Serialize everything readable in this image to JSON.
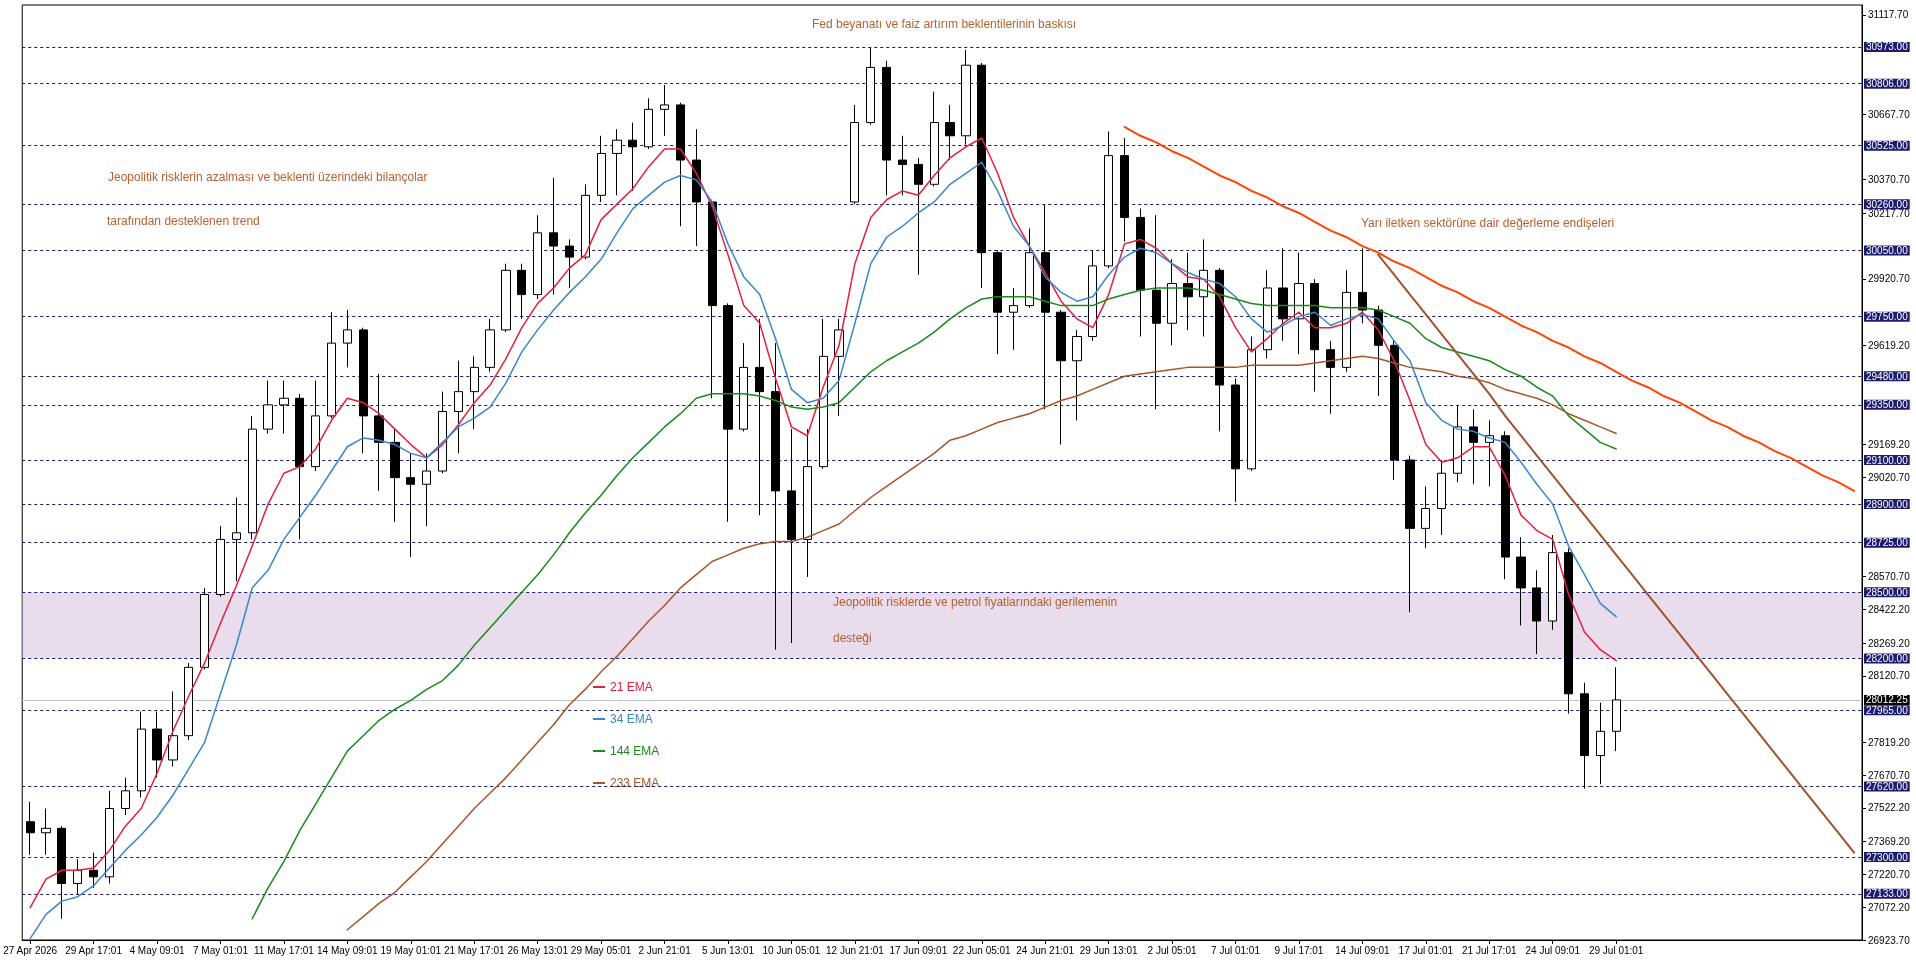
{
  "chart_data": {
    "type": "candlestick",
    "color": "#000000",
    "categories": [
      "27 Apr 2026",
      null,
      null,
      null,
      "29 Apr 17:01",
      null,
      null,
      null,
      "4 May 09:01",
      null,
      null,
      null,
      "7 May 01:01",
      null,
      null,
      null,
      "11 May 17:01",
      null,
      null,
      null,
      "14 May 09:01",
      null,
      null,
      null,
      "19 May 01:01",
      null,
      null,
      null,
      "21 May 17:01",
      null,
      null,
      null,
      "26 May 13:01",
      null,
      null,
      null,
      "29 May 05:01",
      null,
      null,
      null,
      "2 Jun 21:01",
      null,
      null,
      null,
      "5 Jun 13:01",
      null,
      null,
      null,
      "10 Jun 05:01",
      null,
      null,
      null,
      "12 Jun 21:01",
      null,
      null,
      null,
      "17 Jun 09:01",
      null,
      null,
      null,
      "22 Jun 05:01",
      null,
      null,
      null,
      "24 Jun 21:01",
      null,
      null,
      null,
      "29 Jun 13:01",
      null,
      null,
      null,
      "2 Jul 05:01",
      null,
      null,
      null,
      "7 Jul 01:01",
      null,
      null,
      null,
      "9 Jul 17:01",
      null,
      null,
      null,
      "14 Jul 09:01",
      null,
      null,
      null,
      "17 Jul 01:01",
      null,
      null,
      null,
      "21 Jul 17:01",
      null,
      null,
      null,
      "24 Jul 09:01",
      null,
      null,
      null,
      "29 Jul 01:01",
      null,
      null,
      null,
      null,
      null,
      null,
      null,
      null,
      null,
      null,
      null,
      null,
      null,
      null,
      null
    ],
    "ohlc": [
      [
        27460,
        27550,
        27310,
        27410
      ],
      [
        27410,
        27520,
        27310,
        27430
      ],
      [
        27430,
        27440,
        27020,
        27180
      ],
      [
        27180,
        27290,
        27130,
        27240
      ],
      [
        27240,
        27320,
        27160,
        27210
      ],
      [
        27210,
        27600,
        27180,
        27520
      ],
      [
        27520,
        27660,
        27490,
        27600
      ],
      [
        27600,
        27960,
        27570,
        27880
      ],
      [
        27880,
        27960,
        27660,
        27740
      ],
      [
        27740,
        28050,
        27710,
        27850
      ],
      [
        27850,
        28180,
        27830,
        28160
      ],
      [
        28160,
        28520,
        28150,
        28490
      ],
      [
        28490,
        28800,
        28480,
        28740
      ],
      [
        28740,
        28930,
        28550,
        28770
      ],
      [
        28770,
        29300,
        28740,
        29240
      ],
      [
        29240,
        29460,
        29220,
        29350
      ],
      [
        29350,
        29460,
        29220,
        29380
      ],
      [
        29380,
        29400,
        28740,
        29070
      ],
      [
        29070,
        29460,
        29050,
        29300
      ],
      [
        29300,
        29770,
        29290,
        29630
      ],
      [
        29630,
        29780,
        29520,
        29690
      ],
      [
        29690,
        29700,
        29130,
        29300
      ],
      [
        29300,
        29490,
        28960,
        29180
      ],
      [
        29180,
        29240,
        28820,
        29020
      ],
      [
        29020,
        29130,
        28660,
        28990
      ],
      [
        28990,
        29130,
        28800,
        29050
      ],
      [
        29050,
        29410,
        29040,
        29320
      ],
      [
        29320,
        29550,
        29130,
        29410
      ],
      [
        29410,
        29570,
        29240,
        29520
      ],
      [
        29520,
        29740,
        29500,
        29690
      ],
      [
        29690,
        29990,
        29680,
        29960
      ],
      [
        29960,
        29990,
        29740,
        29850
      ],
      [
        29850,
        30210,
        29830,
        30130
      ],
      [
        30130,
        30380,
        29850,
        30070
      ],
      [
        30070,
        30100,
        29880,
        30020
      ],
      [
        30020,
        30350,
        30010,
        30300
      ],
      [
        30300,
        30570,
        30270,
        30490
      ],
      [
        30490,
        30600,
        30300,
        30550
      ],
      [
        30550,
        30630,
        30320,
        30520
      ],
      [
        30520,
        30740,
        30510,
        30690
      ],
      [
        30690,
        30800,
        30570,
        30710
      ],
      [
        30710,
        30720,
        30160,
        30460
      ],
      [
        30460,
        30600,
        30070,
        30270
      ],
      [
        30270,
        30280,
        29380,
        29800
      ],
      [
        29800,
        29810,
        28820,
        29240
      ],
      [
        29240,
        29630,
        29230,
        29520
      ],
      [
        29520,
        29740,
        28850,
        29410
      ],
      [
        29410,
        29630,
        28240,
        28960
      ],
      [
        28960,
        29240,
        28270,
        28740
      ],
      [
        28740,
        29240,
        28570,
        29070
      ],
      [
        29070,
        29740,
        29060,
        29570
      ],
      [
        29570,
        29740,
        29300,
        29690
      ],
      [
        30270,
        30710,
        30260,
        30630
      ],
      [
        30630,
        30970,
        30620,
        30880
      ],
      [
        30880,
        30910,
        30300,
        30460
      ],
      [
        30460,
        30570,
        30300,
        30440
      ],
      [
        30440,
        30470,
        29940,
        30350
      ],
      [
        30350,
        30770,
        30340,
        30630
      ],
      [
        30630,
        30710,
        30460,
        30570
      ],
      [
        30570,
        30960,
        30530,
        30890
      ],
      [
        30890,
        30900,
        29880,
        30040
      ],
      [
        30040,
        30050,
        29580,
        29770
      ],
      [
        29770,
        29880,
        29600,
        29800
      ],
      [
        29800,
        30150,
        29790,
        30040
      ],
      [
        30040,
        30260,
        29330,
        29770
      ],
      [
        29770,
        29780,
        29170,
        29550
      ],
      [
        29550,
        29690,
        29280,
        29660
      ],
      [
        29660,
        30050,
        29640,
        29980
      ],
      [
        29980,
        30590,
        29970,
        30480
      ],
      [
        30480,
        30560,
        30090,
        30200
      ],
      [
        30200,
        30240,
        29660,
        29870
      ],
      [
        29870,
        30210,
        29330,
        29720
      ],
      [
        29720,
        30010,
        29620,
        29900
      ],
      [
        29900,
        30040,
        29690,
        29840
      ],
      [
        29840,
        30100,
        29660,
        29960
      ],
      [
        29960,
        29970,
        29230,
        29440
      ],
      [
        29440,
        29470,
        28910,
        29060
      ],
      [
        29060,
        29660,
        29050,
        29600
      ],
      [
        29600,
        29960,
        29560,
        29880
      ],
      [
        29880,
        30060,
        29640,
        29740
      ],
      [
        29740,
        30040,
        29580,
        29900
      ],
      [
        29900,
        29920,
        29410,
        29600
      ],
      [
        29600,
        29640,
        29310,
        29520
      ],
      [
        29520,
        29960,
        29500,
        29860
      ],
      [
        29860,
        30060,
        29720,
        29780
      ],
      [
        29780,
        29800,
        29390,
        29620
      ],
      [
        29620,
        29640,
        29010,
        29100
      ],
      [
        29100,
        29120,
        28410,
        28790
      ],
      [
        28790,
        28980,
        28700,
        28880
      ],
      [
        28880,
        29100,
        28760,
        29040
      ],
      [
        29040,
        29350,
        29000,
        29250
      ],
      [
        29250,
        29330,
        28990,
        29180
      ],
      [
        29180,
        29280,
        28980,
        29210
      ],
      [
        29210,
        29230,
        28560,
        28660
      ],
      [
        28660,
        28750,
        28350,
        28520
      ],
      [
        28520,
        28600,
        28220,
        28370
      ],
      [
        28370,
        28760,
        28330,
        28680
      ],
      [
        28680,
        28700,
        27950,
        28040
      ],
      [
        28040,
        28090,
        27610,
        27760
      ],
      [
        27760,
        28000,
        27630,
        27870
      ],
      [
        27870,
        28160,
        27780,
        28012.25
      ],
      null,
      null,
      null,
      null,
      null,
      null,
      null,
      null,
      null,
      null,
      null,
      null,
      null,
      null,
      null
    ],
    "series": [
      {
        "type": "line",
        "name": "21 EMA",
        "color": "#e3203d",
        "values": [
          27070,
          27200,
          27240,
          27240,
          27250,
          27330,
          27440,
          27520,
          27680,
          27870,
          28030,
          28180,
          28360,
          28530,
          28710,
          28900,
          29040,
          29070,
          29150,
          29280,
          29380,
          29360,
          29310,
          29240,
          29170,
          29110,
          29170,
          29260,
          29360,
          29440,
          29560,
          29700,
          29810,
          29880,
          29970,
          30030,
          30190,
          30260,
          30330,
          30430,
          30510,
          30510,
          30400,
          30250,
          30030,
          29800,
          29720,
          29470,
          29250,
          29210,
          29430,
          29620,
          29990,
          30200,
          30280,
          30320,
          30300,
          30390,
          30470,
          30520,
          30560,
          30400,
          30200,
          30070,
          29950,
          29820,
          29740,
          29700,
          29850,
          30080,
          30100,
          30060,
          29990,
          29930,
          29920,
          29840,
          29700,
          29590,
          29650,
          29720,
          29770,
          29700,
          29700,
          29720,
          29770,
          29690,
          29550,
          29370,
          29170,
          29090,
          29110,
          29160,
          29160,
          29030,
          28850,
          28780,
          28740,
          28490,
          28320,
          28240,
          28190,
          null,
          null,
          null,
          null,
          null,
          null,
          null,
          null,
          null,
          null,
          null,
          null,
          null,
          null,
          null
        ]
      },
      {
        "type": "line",
        "name": "34 EMA",
        "color": "#3b87c9",
        "values": [
          26930,
          27040,
          27100,
          27120,
          27170,
          27250,
          27330,
          27400,
          27480,
          27580,
          27700,
          27820,
          28040,
          28260,
          28520,
          28600,
          28740,
          28840,
          28940,
          29050,
          29160,
          29200,
          29190,
          29170,
          29130,
          29110,
          29180,
          29250,
          29290,
          29340,
          29450,
          29590,
          29690,
          29780,
          29860,
          29930,
          30010,
          30130,
          30240,
          30300,
          30360,
          30390,
          30370,
          30270,
          30080,
          29930,
          29850,
          29650,
          29420,
          29360,
          29380,
          29460,
          29720,
          29990,
          30110,
          30160,
          30220,
          30270,
          30350,
          30400,
          30450,
          30320,
          30160,
          30070,
          29930,
          29860,
          29820,
          29840,
          29940,
          30020,
          30060,
          30040,
          29990,
          29950,
          29920,
          29900,
          29840,
          29740,
          29680,
          29710,
          29750,
          29770,
          29710,
          29740,
          29760,
          29740,
          29640,
          29550,
          29360,
          29280,
          29240,
          29230,
          29200,
          29180,
          29090,
          28990,
          28900,
          28710,
          28580,
          28450,
          28390,
          null,
          null,
          null,
          null,
          null,
          null,
          null,
          null,
          null,
          null,
          null,
          null,
          null,
          null,
          null
        ]
      },
      {
        "type": "line",
        "name": "144 EMA",
        "color": "#1a8a1a",
        "values": [
          null,
          null,
          null,
          null,
          null,
          null,
          null,
          null,
          null,
          null,
          null,
          null,
          null,
          null,
          27020,
          27160,
          27280,
          27420,
          27540,
          27660,
          27780,
          27850,
          27920,
          27970,
          28010,
          28060,
          28100,
          28170,
          28260,
          28340,
          28420,
          28500,
          28580,
          28670,
          28770,
          28860,
          28940,
          29030,
          29110,
          29180,
          29250,
          29310,
          29380,
          29400,
          29400,
          29400,
          29390,
          29370,
          29340,
          29330,
          29340,
          29360,
          29430,
          29500,
          29550,
          29590,
          29630,
          29680,
          29740,
          29790,
          29830,
          29840,
          29840,
          29840,
          29820,
          29800,
          29800,
          29800,
          29830,
          29850,
          29870,
          29880,
          29880,
          29880,
          29870,
          29850,
          29830,
          29810,
          29800,
          29800,
          29800,
          29800,
          29790,
          29790,
          29790,
          29780,
          29750,
          29720,
          29650,
          29610,
          29590,
          29570,
          29550,
          29510,
          29480,
          29430,
          29390,
          29300,
          29240,
          29180,
          29150,
          null,
          null,
          null,
          null,
          null,
          null,
          null,
          null,
          null,
          null,
          null,
          null,
          null,
          null,
          null
        ]
      },
      {
        "type": "line",
        "name": "233 EMA",
        "color": "#a65628",
        "values": [
          null,
          null,
          null,
          null,
          null,
          null,
          null,
          null,
          null,
          null,
          null,
          null,
          null,
          null,
          null,
          null,
          null,
          null,
          null,
          null,
          26970,
          27030,
          27090,
          27140,
          27210,
          27280,
          27360,
          27440,
          27520,
          27590,
          27660,
          27740,
          27820,
          27900,
          27990,
          28060,
          28140,
          28210,
          28290,
          28370,
          28440,
          28520,
          28580,
          28640,
          28670,
          28700,
          28720,
          28730,
          28730,
          28750,
          28780,
          28810,
          28870,
          28930,
          28980,
          29030,
          29080,
          29130,
          29190,
          29210,
          29240,
          29270,
          29290,
          29310,
          29340,
          29370,
          29390,
          29420,
          29450,
          29480,
          29490,
          29500,
          29510,
          29520,
          29520,
          29520,
          29520,
          29530,
          29530,
          29530,
          29530,
          29540,
          29550,
          29560,
          29570,
          29560,
          29540,
          29520,
          29510,
          29500,
          29480,
          29470,
          29450,
          29420,
          29400,
          29380,
          29350,
          29310,
          29280,
          29250,
          29220,
          null,
          null,
          null,
          null,
          null,
          null,
          null,
          null,
          null,
          null,
          null,
          null,
          null,
          null,
          null
        ]
      },
      {
        "type": "line",
        "color": "#ff4500",
        "values": [
          null,
          null,
          null,
          null,
          null,
          null,
          null,
          null,
          null,
          null,
          null,
          null,
          null,
          null,
          null,
          null,
          null,
          null,
          null,
          null,
          null,
          null,
          null,
          null,
          null,
          null,
          null,
          null,
          null,
          null,
          null,
          null,
          null,
          null,
          null,
          null,
          null,
          null,
          null,
          null,
          null,
          null,
          null,
          null,
          null,
          null,
          null,
          null,
          null,
          null,
          null,
          null,
          null,
          null,
          null,
          null,
          null,
          null,
          null,
          null,
          null,
          null,
          null,
          null,
          null,
          null,
          null,
          null,
          null,
          30610,
          30570,
          30540,
          30500,
          30470,
          30430,
          30390,
          30360,
          30320,
          30290,
          30250,
          30220,
          30180,
          30140,
          30110,
          30070,
          30040,
          30000,
          29970,
          29930,
          29890,
          29860,
          29820,
          29790,
          29750,
          29710,
          29680,
          29640,
          29610,
          29570,
          29540,
          29500,
          29460,
          29430,
          29390,
          29360,
          29320,
          29280,
          29250,
          29210,
          29180,
          29140,
          29110,
          29070,
          29030,
          29000,
          28960
        ]
      },
      {
        "type": "line",
        "color": "#a0522d",
        "values": [
          null,
          null,
          null,
          null,
          null,
          null,
          null,
          null,
          null,
          null,
          null,
          null,
          null,
          null,
          null,
          null,
          null,
          null,
          null,
          null,
          null,
          null,
          null,
          null,
          null,
          null,
          null,
          null,
          null,
          null,
          null,
          null,
          null,
          null,
          null,
          null,
          null,
          null,
          null,
          null,
          null,
          null,
          null,
          null,
          null,
          null,
          null,
          null,
          null,
          null,
          null,
          null,
          null,
          null,
          null,
          null,
          null,
          null,
          null,
          null,
          null,
          null,
          null,
          null,
          null,
          null,
          null,
          null,
          null,
          null,
          null,
          null,
          null,
          null,
          null,
          null,
          null,
          null,
          null,
          null,
          null,
          null,
          null,
          null,
          null,
          30030,
          29940,
          29850,
          29760,
          29670,
          29580,
          29490,
          29400,
          29300,
          29210,
          29120,
          29030,
          28940,
          28850,
          28760,
          28670,
          28580,
          28490,
          28400,
          28310,
          28220,
          28130,
          28040,
          27950,
          27860,
          27770,
          27680,
          27590,
          27500,
          27410,
          27320
        ]
      }
    ],
    "bands": [
      {
        "axis": "y",
        "from": 28200,
        "to": 28500,
        "color": "#d7bfdc"
      }
    ],
    "ylim": [
      26923.7,
      31163
    ],
    "yticks": [
      {
        "value": 31117.7,
        "label": "31117.70"
      },
      {
        "value": 30667.7,
        "label": "30667.70"
      },
      {
        "value": 30370.7,
        "label": "30370.70"
      },
      {
        "value": 30217.7,
        "label": "30217.70"
      },
      {
        "value": 29920.7,
        "label": "29920.70"
      },
      {
        "value": 29619.2,
        "label": "29619.20"
      },
      {
        "value": 29169.2,
        "label": "29169.20"
      },
      {
        "value": 29020.7,
        "label": "29020.70"
      },
      {
        "value": 28570.7,
        "label": "28570.70"
      },
      {
        "value": 28422.2,
        "label": "28422.20"
      },
      {
        "value": 28269.2,
        "label": "28269.20"
      },
      {
        "value": 28120.7,
        "label": "28120.70"
      },
      {
        "value": 27819.2,
        "label": "27819.20"
      },
      {
        "value": 27670.7,
        "label": "27670.70"
      },
      {
        "value": 27522.2,
        "label": "27522.20"
      },
      {
        "value": 27369.2,
        "label": "27369.20"
      },
      {
        "value": 27220.7,
        "label": "27220.70"
      },
      {
        "value": 27072.2,
        "label": "27072.20"
      },
      {
        "value": 26923.7,
        "label": "26923.70"
      }
    ],
    "ref_lines": [
      {
        "axis": "y",
        "value": 30973,
        "label": "30973.00",
        "color": "#1c1c6e",
        "line_style": "dashed"
      },
      {
        "axis": "y",
        "value": 30806,
        "label": "30806.00",
        "color": "#1c1c6e",
        "line_style": "dashed"
      },
      {
        "axis": "y",
        "value": 30525,
        "label": "30525.00",
        "color": "#1c1c6e",
        "line_style": "dashed"
      },
      {
        "axis": "y",
        "value": 30260,
        "label": "30260.00",
        "color": "#1c1c6e",
        "line_style": "dashed"
      },
      {
        "axis": "y",
        "value": 30050,
        "label": "30050.00",
        "color": "#1c1c6e",
        "line_style": "dashed"
      },
      {
        "axis": "y",
        "value": 29750,
        "label": "29750.00",
        "color": "#1c1c6e",
        "line_style": "dashed"
      },
      {
        "axis": "y",
        "value": 29480,
        "label": "29480.00",
        "color": "#1c1c6e",
        "line_style": "dashed"
      },
      {
        "axis": "y",
        "value": 29350,
        "label": "29350.00",
        "color": "#1c1c6e",
        "line_style": "dashed"
      },
      {
        "axis": "y",
        "value": 29100,
        "label": "29100.00",
        "color": "#1c1c6e",
        "line_style": "dashed"
      },
      {
        "axis": "y",
        "value": 28900,
        "label": "28900.00",
        "color": "#1c1c6e",
        "line_style": "dashed"
      },
      {
        "axis": "y",
        "value": 28725,
        "label": "28725.00",
        "color": "#1c1c6e",
        "line_style": "dashed"
      },
      {
        "axis": "y",
        "value": 28500,
        "label": "28500.00",
        "color": "#1c1c6e",
        "line_style": "dashed"
      },
      {
        "axis": "y",
        "value": 28200,
        "label": "28200.00",
        "color": "#1c1c6e",
        "line_style": "dashed"
      },
      {
        "axis": "y",
        "value": 28012.25,
        "label": "28012.25",
        "color": "#c0c0c0",
        "line_style": "solid"
      },
      {
        "axis": "y",
        "value": 27965,
        "label": "27965.00",
        "color": "#1c1c6e",
        "line_style": "dashed"
      },
      {
        "axis": "y",
        "value": 27620,
        "label": "27620.00",
        "color": "#1c1c6e",
        "line_style": "dashed"
      },
      {
        "axis": "y",
        "value": 27300,
        "label": "27300.00",
        "color": "#1c1c6e",
        "line_style": "dashed"
      },
      {
        "axis": "y",
        "value": 27133,
        "label": "27133.00",
        "color": "#1c1c6e",
        "line_style": "dashed"
      }
    ],
    "annotations": [
      "Fed beyanatı ve faiz artırım beklentilerinin baskısı",
      "Jeopolitik risklerin azalması ve beklenti üzerindeki bilançolar",
      "tarafından desteklenen trend",
      "Yarı iletken sektörüne dair değerleme endişeleri",
      "Jeopolitik risklerde ve petrol fiyatlarındaki gerilemenin",
      "desteği"
    ],
    "legend": "bottom",
    "marker": "none",
    "line_style": "solid"
  }
}
